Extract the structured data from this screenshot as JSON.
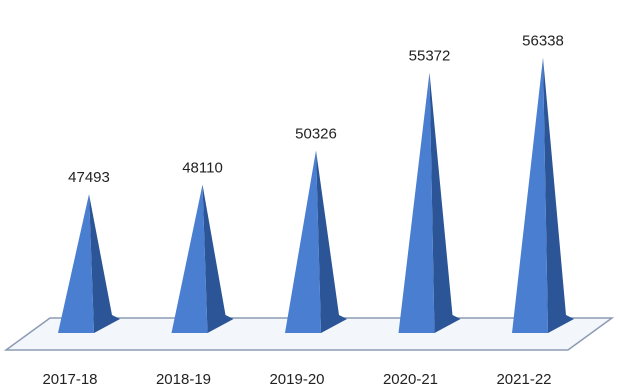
{
  "chart_data": {
    "type": "bar",
    "style": "3d-pyramid",
    "categories": [
      "2017-18",
      "2018-19",
      "2019-20",
      "2020-21",
      "2021-22"
    ],
    "series": [
      {
        "values": [
          47493,
          48110,
          50326,
          55372,
          56338
        ]
      }
    ],
    "data_labels": [
      "47493",
      "48110",
      "50326",
      "55372",
      "56338"
    ],
    "ylim": [
      38500,
      57800
    ],
    "grid": false,
    "legend": "none",
    "colors": {
      "bar_front": "#4a7ed0",
      "bar_side": "#2b5596",
      "floor_stroke": "#8c9bb3",
      "floor_fill": "#f3f6fb"
    }
  }
}
